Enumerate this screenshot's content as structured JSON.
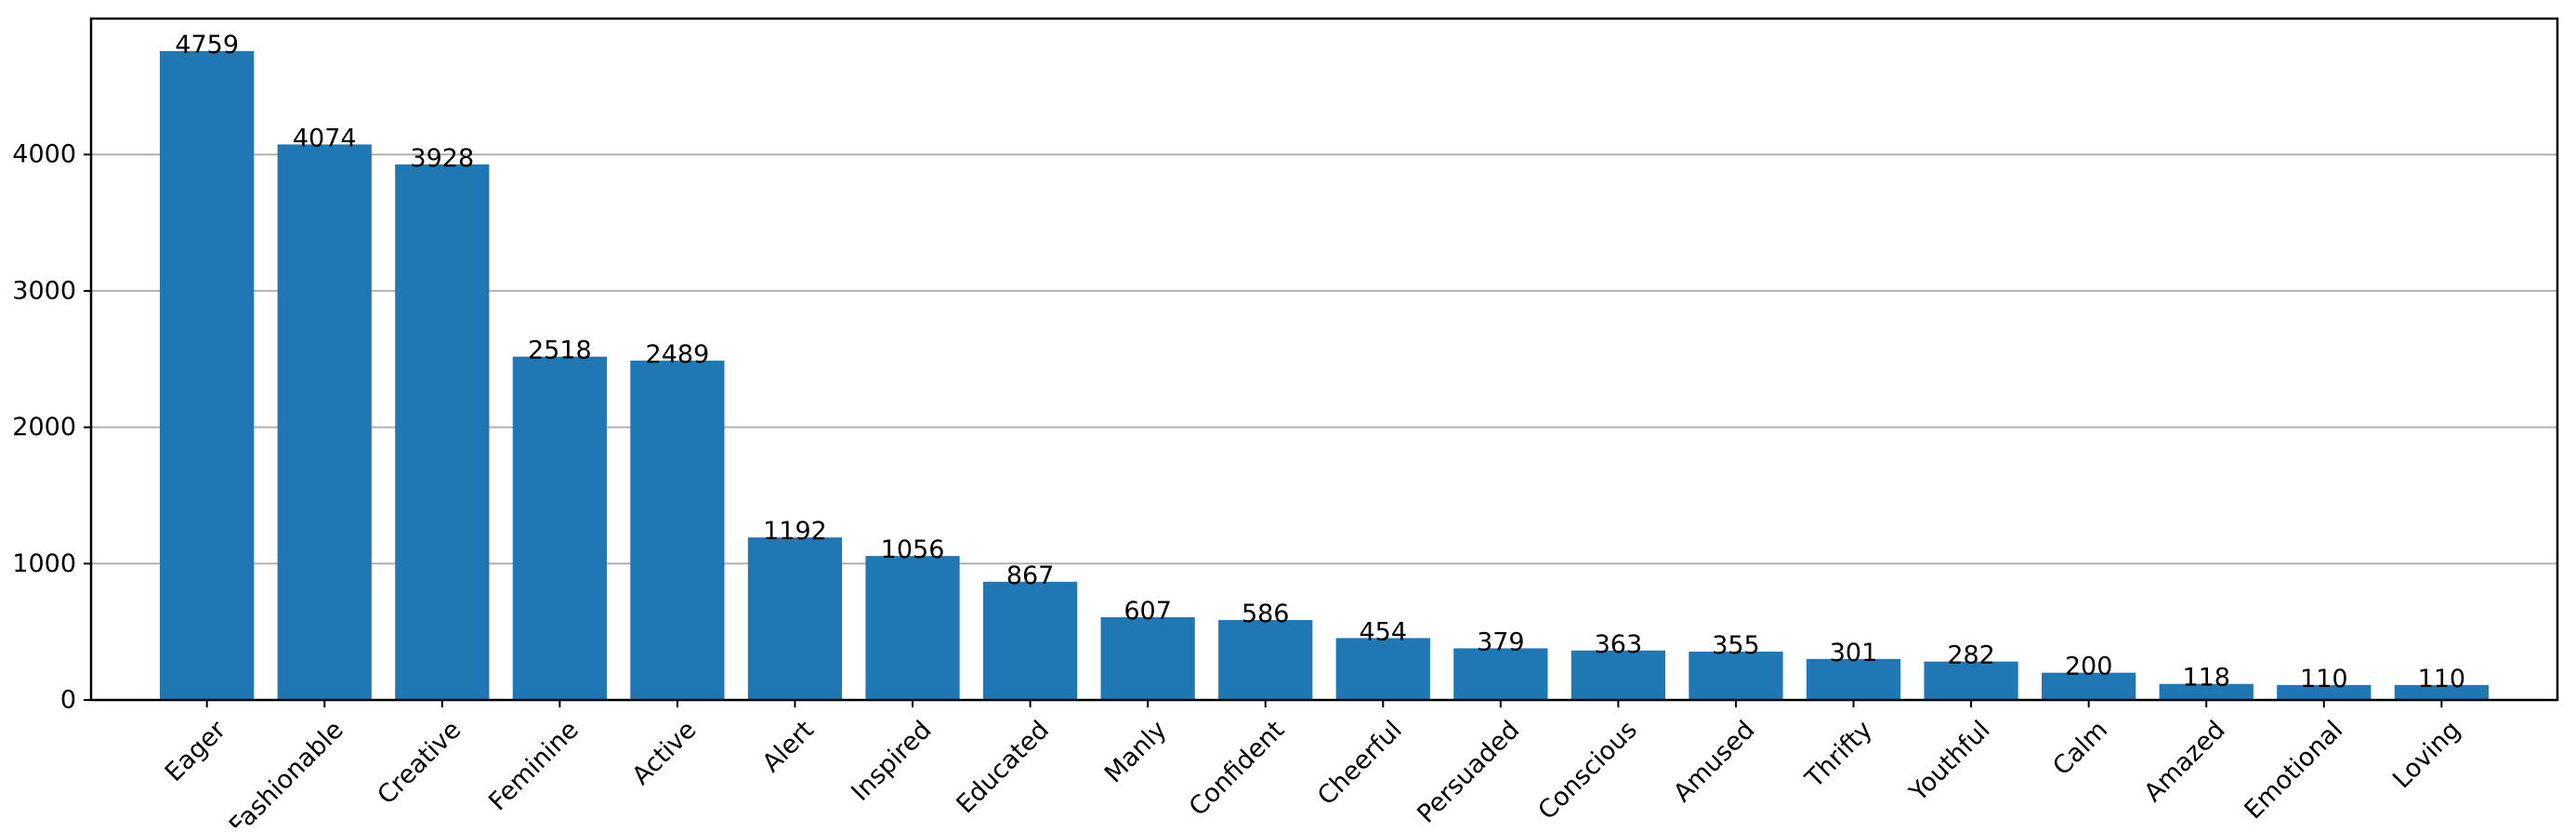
{
  "chart_data": {
    "type": "bar",
    "categories": [
      "Eager",
      "Fashionable",
      "Creative",
      "Feminine",
      "Active",
      "Alert",
      "Inspired",
      "Educated",
      "Manly",
      "Confident",
      "Cheerful",
      "Persuaded",
      "Conscious",
      "Amused",
      "Thrifty",
      "Youthful",
      "Calm",
      "Amazed",
      "Emotional",
      "Loving"
    ],
    "values": [
      4759,
      4074,
      3928,
      2518,
      2489,
      1192,
      1056,
      867,
      607,
      586,
      454,
      379,
      363,
      355,
      301,
      282,
      200,
      118,
      110,
      110
    ],
    "data_labels": [
      "4759",
      "4074",
      "3928",
      "2518",
      "2489",
      "1192",
      "1056",
      "867",
      "607",
      "586",
      "454",
      "379",
      "363",
      "355",
      "301",
      "282",
      "200",
      "118",
      "110",
      "110"
    ],
    "yticks": [
      0,
      1000,
      2000,
      3000,
      4000
    ],
    "ytick_labels": [
      "0",
      "1000",
      "2000",
      "3000",
      "4000"
    ],
    "ylim": [
      0,
      4997
    ],
    "title": "",
    "xlabel": "",
    "ylabel": "",
    "grid": "horizontal",
    "bar_color": "#1f77b4",
    "grid_color": "#b0b0b0"
  }
}
